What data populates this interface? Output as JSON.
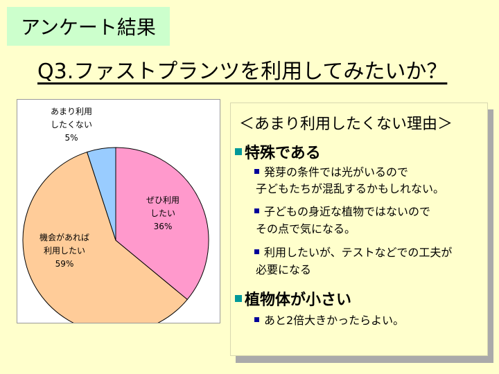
{
  "header": {
    "tag": "アンケート結果",
    "question": "Q3.ファストプランツを利用してみたいか？"
  },
  "chart_data": {
    "type": "pie",
    "categories": [
      "ぜひ利用したい",
      "機会があれば利用したい",
      "あまり利用したくない"
    ],
    "values": [
      36,
      59,
      5
    ],
    "labels": [
      {
        "line1": "ぜひ利用",
        "line2": "したい",
        "pct": "36%"
      },
      {
        "line1": "機会があれば",
        "line2": "利用したい",
        "pct": "59%"
      },
      {
        "line1": "あまり利用",
        "line2": "したくない",
        "pct": "5%"
      }
    ],
    "colors": [
      "#FF99CC",
      "#FFCC99",
      "#99CCFF"
    ],
    "start": "12 o'clock",
    "direction": "clockwise"
  },
  "reasons": {
    "title": "＜あまり利用したくない理由＞",
    "groups": [
      {
        "heading": "特殊である",
        "items": [
          {
            "line1": "発芽の条件では光がいるので",
            "line2": "子どもたちが混乱するかもしれない。"
          },
          {
            "line1": "子どもの身近な植物ではないので",
            "line2": "その点で気になる。"
          },
          {
            "line1": "利用したいが、テストなどでの工夫が",
            "line2": "必要になる"
          }
        ]
      },
      {
        "heading": "植物体が小さい",
        "items": [
          {
            "line1": "あと2倍大きかったらよい。",
            "line2": ""
          }
        ]
      }
    ]
  }
}
